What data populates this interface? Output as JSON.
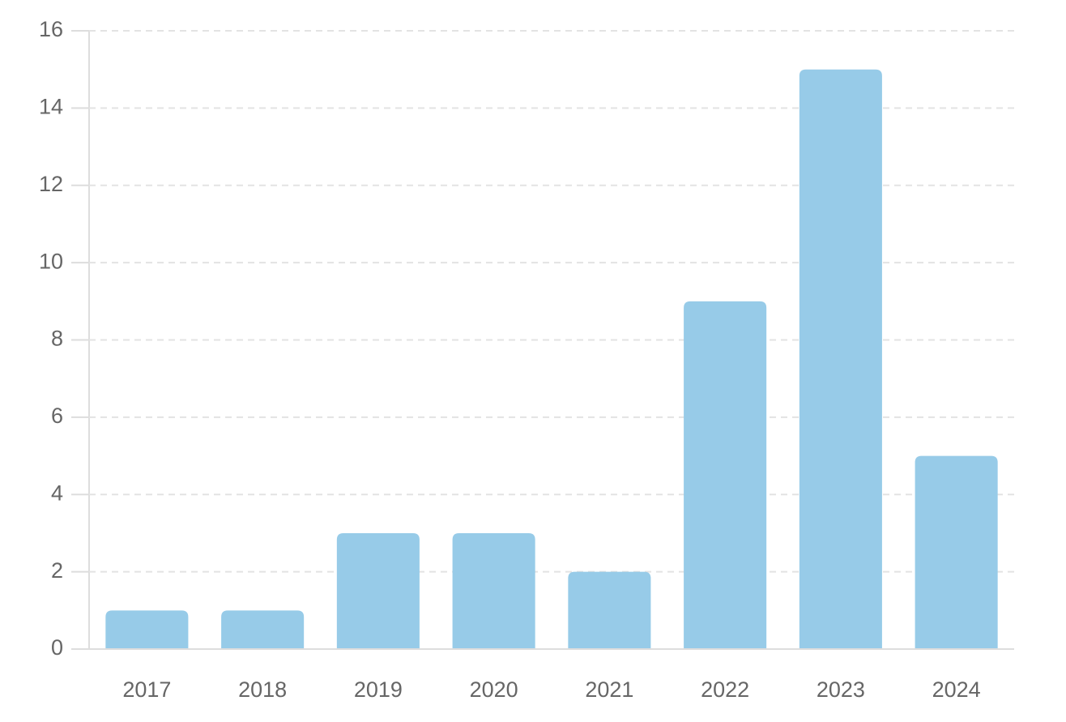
{
  "chart_data": {
    "type": "bar",
    "categories": [
      "2017",
      "2018",
      "2019",
      "2020",
      "2021",
      "2022",
      "2023",
      "2024"
    ],
    "values": [
      1,
      1,
      3,
      3,
      2,
      9,
      15,
      5
    ],
    "color": "#97cbe8",
    "ylim": [
      0,
      16
    ],
    "yticks": [
      0,
      2,
      4,
      6,
      8,
      10,
      12,
      14,
      16
    ],
    "grid": true
  }
}
